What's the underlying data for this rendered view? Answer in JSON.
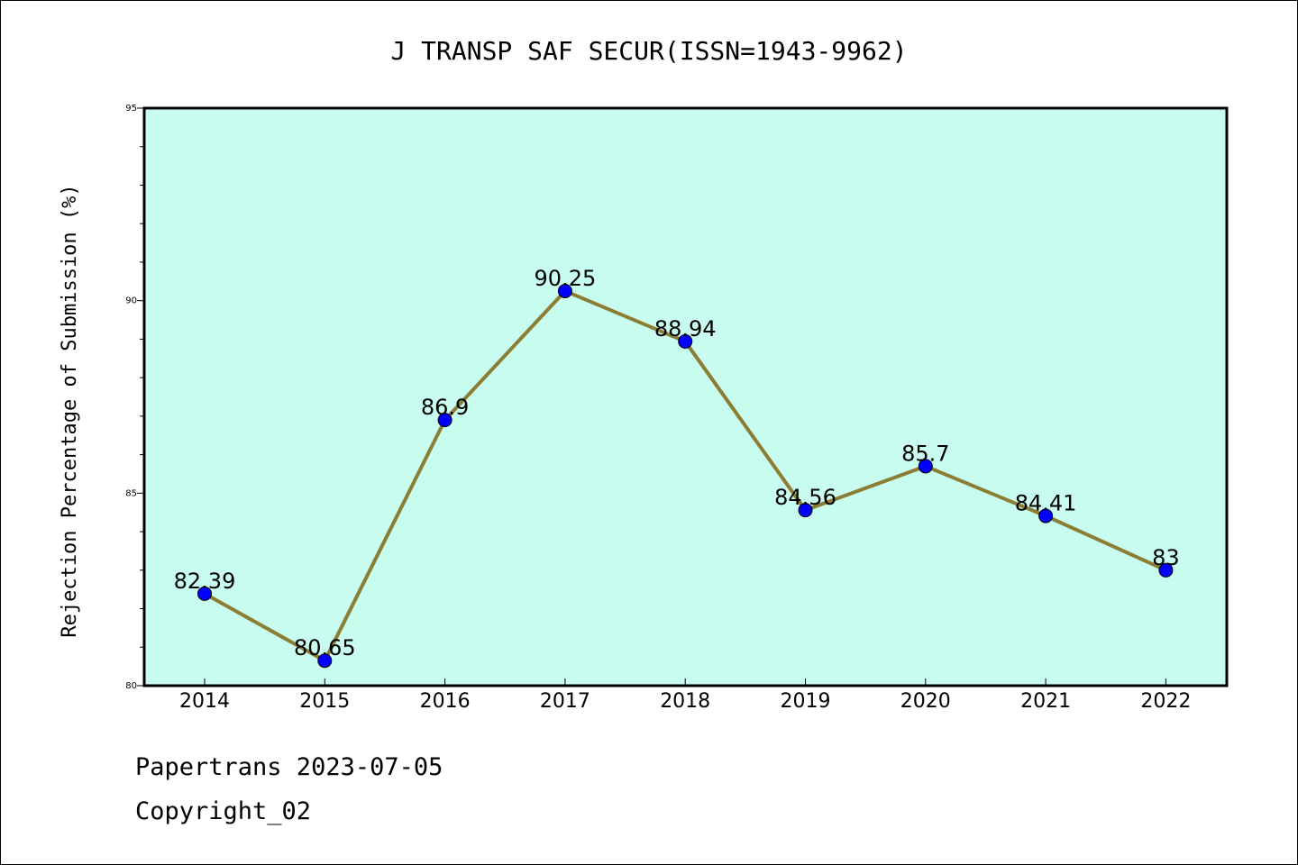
{
  "colors": {
    "plot_background": "#c8fcee",
    "line": "#8b7d34",
    "marker": "#0000ff"
  },
  "footer": {
    "line1": "Papertrans 2023-07-05",
    "line2": "Copyright_02"
  },
  "chart_data": {
    "type": "line",
    "title": "J TRANSP SAF SECUR(ISSN=1943-9962)",
    "xlabel": "",
    "ylabel": "Rejection Percentage of Submission (%)",
    "categories": [
      "2014",
      "2015",
      "2016",
      "2017",
      "2018",
      "2019",
      "2020",
      "2021",
      "2022"
    ],
    "values": [
      82.39,
      80.65,
      86.9,
      90.25,
      88.94,
      84.56,
      85.7,
      84.41,
      83
    ],
    "data_labels": [
      "82.39",
      "80.65",
      "86.9",
      "90.25",
      "88.94",
      "84.56",
      "85.7",
      "84.41",
      "83"
    ],
    "ylim": [
      80,
      95
    ],
    "yticks": [
      80,
      85,
      90,
      95
    ],
    "grid": false
  }
}
